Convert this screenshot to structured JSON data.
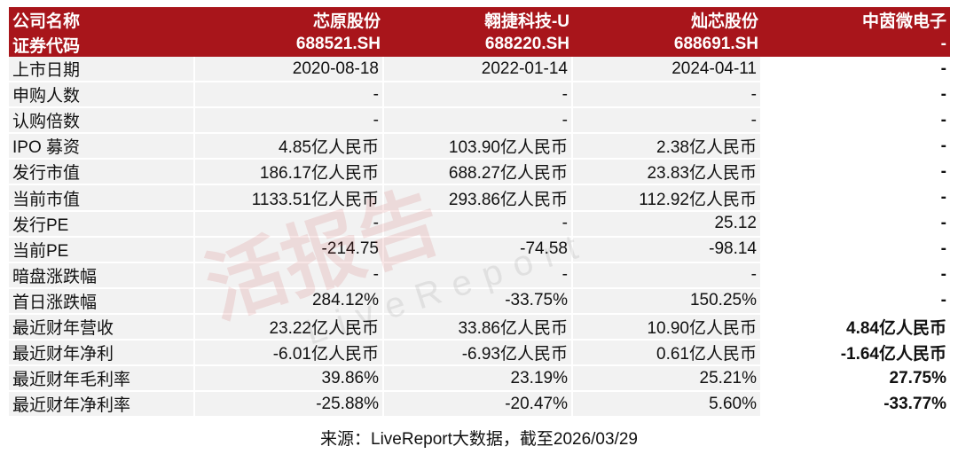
{
  "header": {
    "rows": [
      [
        "公司名称",
        "芯原股份",
        "翱捷科技-U",
        "灿芯股份",
        "中茵微电子"
      ],
      [
        "证券代码",
        "688521.SH",
        "688220.SH",
        "688691.SH",
        "-"
      ]
    ]
  },
  "table": {
    "rows": [
      [
        "上市日期",
        "2020-08-18",
        "2022-01-14",
        "2024-04-11",
        "-"
      ],
      [
        "申购人数",
        "-",
        "-",
        "-",
        "-"
      ],
      [
        "认购倍数",
        "-",
        "-",
        "-",
        "-"
      ],
      [
        "IPO 募资",
        "4.85亿人民币",
        "103.90亿人民币",
        "2.38亿人民币",
        "-"
      ],
      [
        "发行市值",
        "186.17亿人民币",
        "688.27亿人民币",
        "23.83亿人民币",
        "-"
      ],
      [
        "当前市值",
        "1133.51亿人民币",
        "293.86亿人民币",
        "112.92亿人民币",
        "-"
      ],
      [
        "发行PE",
        "-",
        "-",
        "25.12",
        "-"
      ],
      [
        "当前PE",
        "-214.75",
        "-74.58",
        "-98.14",
        "-"
      ],
      [
        "暗盘涨跌幅",
        "-",
        "-",
        "-",
        "-"
      ],
      [
        "首日涨跌幅",
        "284.12%",
        "-33.75%",
        "150.25%",
        "-"
      ],
      [
        "最近财年营收",
        "23.22亿人民币",
        "33.86亿人民币",
        "10.90亿人民币",
        "4.84亿人民币"
      ],
      [
        "最近财年净利",
        "-6.01亿人民币",
        "-6.93亿人民币",
        "0.61亿人民币",
        "-1.64亿人民币"
      ],
      [
        "最近财年毛利率",
        "39.86%",
        "23.19%",
        "25.21%",
        "27.75%"
      ],
      [
        "最近财年净利率",
        "-25.88%",
        "-20.47%",
        "5.60%",
        "-33.77%"
      ]
    ]
  },
  "watermark": {
    "title": "活报告",
    "subtitle": "LiveReport"
  },
  "footer": {
    "source": "来源：LiveReport大数据，截至2026/03/29"
  }
}
